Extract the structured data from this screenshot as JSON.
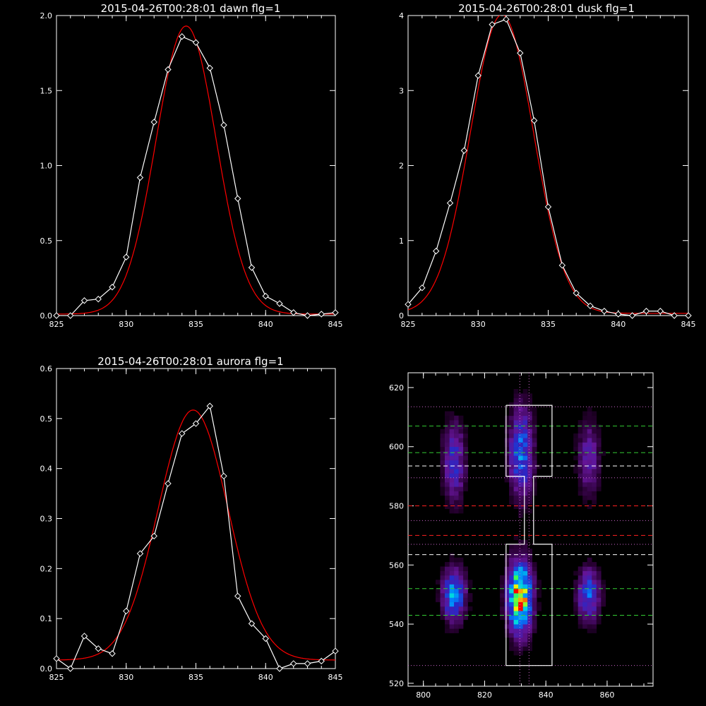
{
  "chart_data": [
    {
      "type": "line",
      "title": "2015-04-26T00:28:01 dawn flg=1",
      "xlim": [
        825,
        845
      ],
      "ylim": [
        0,
        2.0
      ],
      "xticks": [
        825,
        830,
        835,
        840,
        845
      ],
      "yticks": [
        "0.0",
        "0.5",
        "1.0",
        "1.5",
        "2.0"
      ],
      "series": [
        {
          "color": "#ffffff",
          "markers": "diamond",
          "x": [
            825,
            826,
            827,
            828,
            829,
            830,
            831,
            832,
            833,
            834,
            835,
            836,
            837,
            838,
            839,
            840,
            841,
            842,
            843,
            844,
            845
          ],
          "y": [
            0.0,
            0.0,
            0.1,
            0.11,
            0.19,
            0.39,
            0.92,
            1.29,
            1.64,
            1.86,
            1.82,
            1.65,
            1.27,
            0.78,
            0.32,
            0.13,
            0.08,
            0.02,
            0.0,
            0.01,
            0.02
          ]
        },
        {
          "color": "#ff0000",
          "fit": "gaussian",
          "amplitude": 1.92,
          "center": 834.3,
          "sigma": 2.15,
          "offset": 0.01
        }
      ]
    },
    {
      "type": "line",
      "title": "2015-04-26T00:28:01 dusk flg=1",
      "xlim": [
        825,
        845
      ],
      "ylim": [
        0,
        4
      ],
      "xticks": [
        825,
        830,
        835,
        840,
        845
      ],
      "yticks": [
        "0",
        "1",
        "2",
        "3",
        "4"
      ],
      "series": [
        {
          "color": "#ffffff",
          "markers": "diamond",
          "x": [
            825,
            826,
            827,
            828,
            829,
            830,
            831,
            832,
            833,
            834,
            835,
            836,
            837,
            838,
            839,
            840,
            841,
            842,
            843,
            844,
            845
          ],
          "y": [
            0.15,
            0.37,
            0.86,
            1.5,
            2.2,
            3.2,
            3.88,
            3.95,
            3.5,
            2.6,
            1.45,
            0.67,
            0.3,
            0.13,
            0.06,
            0.02,
            0.0,
            0.06,
            0.06,
            0.0,
            0.0
          ]
        },
        {
          "color": "#ff0000",
          "fit": "gaussian",
          "amplitude": 3.98,
          "center": 831.7,
          "sigma": 2.25,
          "offset": 0.03
        }
      ]
    },
    {
      "type": "line",
      "title": "2015-04-26T00:28:01 aurora flg=1",
      "xlim": [
        825,
        845
      ],
      "ylim": [
        0,
        0.6
      ],
      "xticks": [
        825,
        830,
        835,
        840,
        845
      ],
      "yticks": [
        "0.0",
        "0.1",
        "0.2",
        "0.3",
        "0.4",
        "0.5",
        "0.6"
      ],
      "series": [
        {
          "color": "#ffffff",
          "markers": "diamond",
          "x": [
            825,
            826,
            827,
            828,
            829,
            830,
            831,
            832,
            833,
            834,
            835,
            836,
            837,
            838,
            839,
            840,
            841,
            842,
            843,
            844,
            845
          ],
          "y": [
            0.02,
            0.0,
            0.065,
            0.04,
            0.03,
            0.115,
            0.23,
            0.265,
            0.37,
            0.47,
            0.49,
            0.525,
            0.385,
            0.145,
            0.09,
            0.06,
            0.0,
            0.01,
            0.01,
            0.015,
            0.035
          ]
        },
        {
          "color": "#ff0000",
          "fit": "gaussian",
          "amplitude": 0.5,
          "center": 834.8,
          "sigma": 2.5,
          "offset": 0.017
        }
      ]
    },
    {
      "type": "heatmap",
      "xlim": [
        795,
        875
      ],
      "ylim": [
        519,
        625
      ],
      "xticks": [
        800,
        820,
        840,
        860
      ],
      "yticks": [
        520,
        540,
        560,
        580,
        600,
        620
      ],
      "blobs": [
        {
          "x": 810,
          "y": 550,
          "sx": 2.5,
          "sy": 6,
          "amp": 0.55
        },
        {
          "x": 810,
          "y": 595,
          "sx": 2.5,
          "sy": 9,
          "amp": 0.35
        },
        {
          "x": 831.5,
          "y": 549,
          "sx": 2.6,
          "sy": 8,
          "amp": 1.0
        },
        {
          "x": 832,
          "y": 598,
          "sx": 2.6,
          "sy": 10,
          "amp": 0.5
        },
        {
          "x": 854,
          "y": 550,
          "sx": 2.5,
          "sy": 6,
          "amp": 0.45
        },
        {
          "x": 854,
          "y": 596,
          "sx": 2.5,
          "sy": 9,
          "amp": 0.25
        }
      ],
      "hlines": [
        {
          "y": 613.5,
          "color": "#cc66cc",
          "style": "dotted"
        },
        {
          "y": 607,
          "color": "#33cc33",
          "style": "dashed"
        },
        {
          "y": 598,
          "color": "#33cc33",
          "style": "dashed"
        },
        {
          "y": 593.5,
          "color": "#ffffff",
          "style": "dashed"
        },
        {
          "y": 589.5,
          "color": "#cc66cc",
          "style": "dotted"
        },
        {
          "y": 580,
          "color": "#ff2020",
          "style": "dashed"
        },
        {
          "y": 575,
          "color": "#cc66cc",
          "style": "dotted"
        },
        {
          "y": 570,
          "color": "#ff2020",
          "style": "dashed"
        },
        {
          "y": 567,
          "color": "#cc66cc",
          "style": "dotted"
        },
        {
          "y": 563.5,
          "color": "#ffffff",
          "style": "dashed"
        },
        {
          "y": 552,
          "color": "#33cc33",
          "style": "dashed"
        },
        {
          "y": 543,
          "color": "#33cc33",
          "style": "dashed"
        },
        {
          "y": 526,
          "color": "#cc66cc",
          "style": "dotted"
        }
      ],
      "vlines": [
        {
          "x": 831.5,
          "color": "#cc66cc",
          "style": "dotted"
        },
        {
          "x": 834.5,
          "color": "#cc66cc",
          "style": "dotted"
        }
      ],
      "outline": [
        [
          827,
          614
        ],
        [
          842,
          614
        ],
        [
          842,
          590
        ],
        [
          836,
          590
        ],
        [
          836,
          567
        ],
        [
          842,
          567
        ],
        [
          842,
          526
        ],
        [
          827,
          526
        ],
        [
          827,
          567
        ],
        [
          833,
          567
        ],
        [
          833,
          590
        ],
        [
          827,
          590
        ],
        [
          827,
          614
        ]
      ]
    }
  ]
}
